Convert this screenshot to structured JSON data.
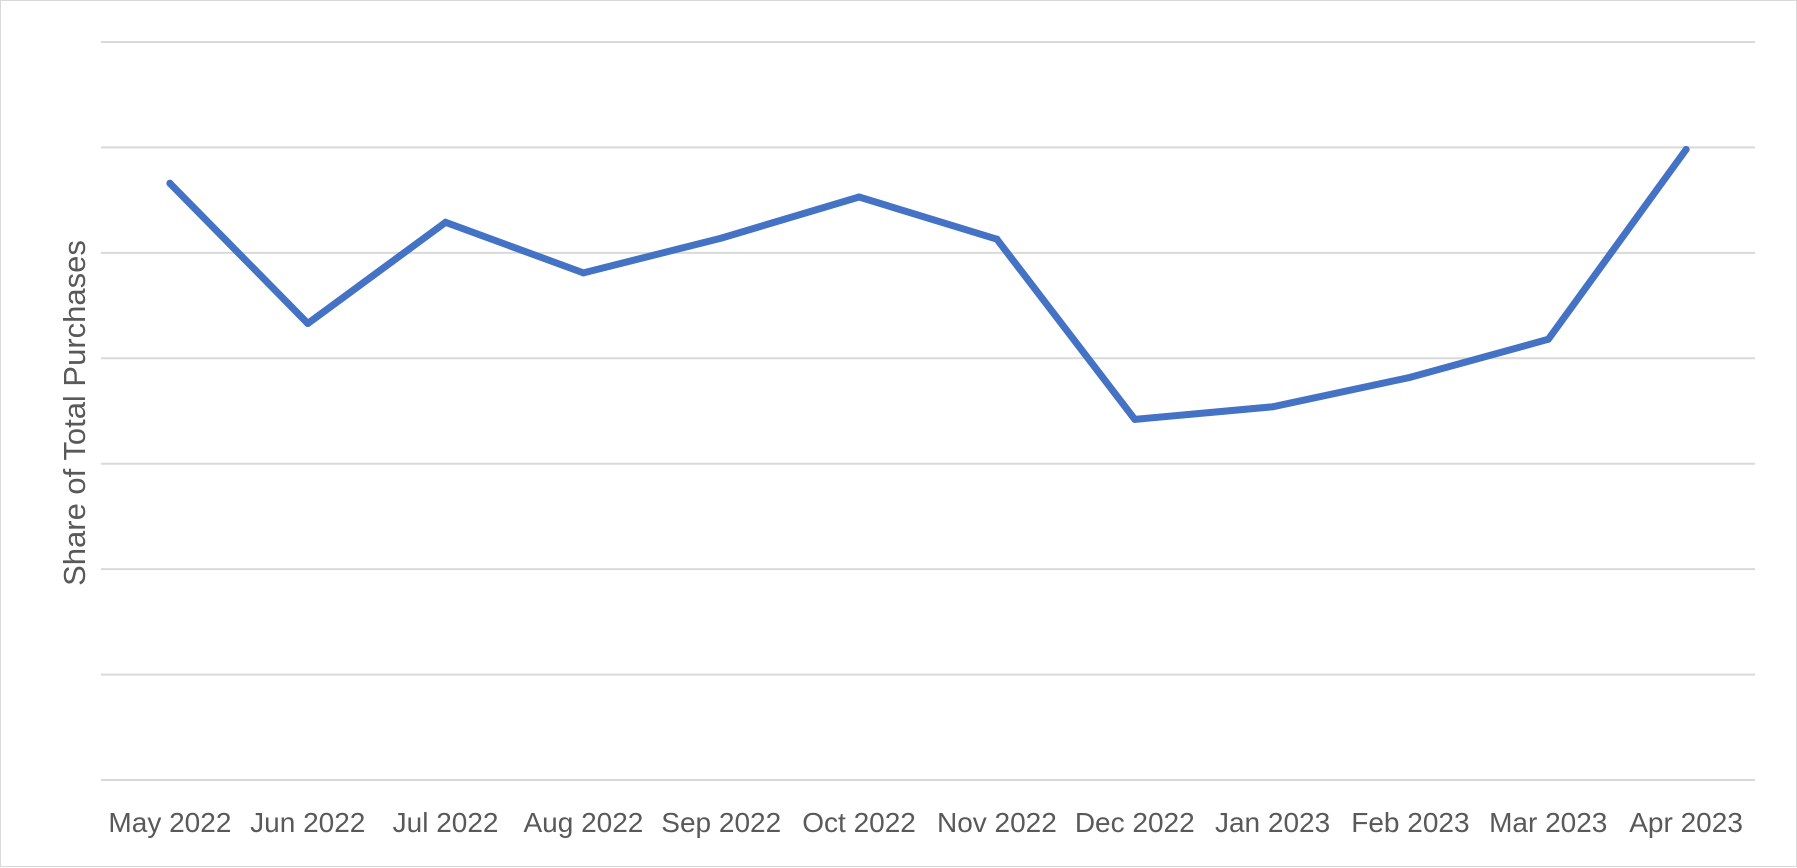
{
  "chart_data": {
    "type": "line",
    "title": "",
    "xlabel": "",
    "ylabel": "Share of Total Purchases",
    "categories": [
      "May 2022",
      "Jun 2022",
      "Jul 2022",
      "Aug 2022",
      "Sep 2022",
      "Oct 2022",
      "Nov 2022",
      "Dec 2022",
      "Jan 2023",
      "Feb 2023",
      "Mar 2023",
      "Apr 2023"
    ],
    "series": [
      {
        "name": "",
        "color": "#4472c4",
        "values": [
          5.66,
          4.33,
          5.29,
          4.81,
          5.14,
          5.53,
          5.13,
          3.42,
          3.54,
          3.82,
          4.18,
          5.98
        ]
      }
    ],
    "ylim": [
      0,
      7
    ],
    "y_tick_labels_shown": false,
    "grid": true,
    "legend": "none"
  }
}
